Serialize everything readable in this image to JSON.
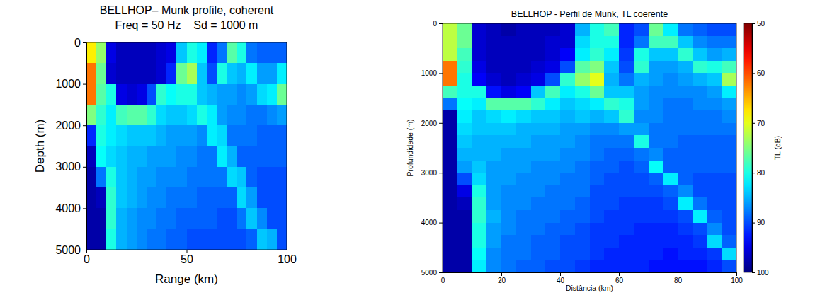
{
  "chart_data": [
    {
      "type": "heatmap",
      "title": "BELLHOP– Munk profile, coherent",
      "subtitle": "Freq = 50 Hz    Sd = 1000 m",
      "x_label": "Range (km)",
      "y_label": "Depth (m)",
      "xlim": [
        0,
        100
      ],
      "ylim": [
        5000,
        0
      ],
      "xticks": [
        0,
        50,
        100
      ],
      "yticks": [
        0,
        1000,
        2000,
        3000,
        4000,
        5000
      ],
      "x": [
        2.5,
        7.5,
        12.5,
        17.5,
        22.5,
        27.5,
        32.5,
        37.5,
        42.5,
        47.5,
        52.5,
        57.5,
        62.5,
        67.5,
        72.5,
        77.5,
        82.5,
        87.5,
        92.5,
        97.5
      ],
      "y": [
        250,
        750,
        1250,
        1750,
        2250,
        2750,
        3250,
        3750,
        4250,
        4750
      ],
      "color_range": [
        50,
        100
      ],
      "values": [
        [
          68,
          74,
          95,
          97,
          97,
          97,
          97,
          96,
          95,
          84,
          80,
          82,
          92,
          88,
          77,
          80,
          88,
          89,
          89,
          89
        ],
        [
          62,
          76,
          96,
          97,
          97,
          97,
          97,
          96,
          92,
          76,
          73,
          84,
          90,
          80,
          84,
          85,
          82,
          86,
          86,
          82
        ],
        [
          62,
          77,
          80,
          95,
          96,
          95,
          90,
          79,
          81,
          80,
          80,
          84,
          85,
          86,
          86,
          87,
          86,
          83,
          82,
          76
        ],
        [
          75,
          79,
          82,
          78,
          77,
          77,
          79,
          83,
          84,
          84,
          83,
          80,
          82,
          86,
          87,
          87,
          88,
          88,
          87,
          86
        ],
        [
          92,
          80,
          82,
          83,
          84,
          84,
          84,
          85,
          86,
          86,
          86,
          87,
          82,
          83,
          88,
          88,
          88,
          89,
          89,
          89
        ],
        [
          97,
          81,
          83,
          84,
          85,
          85,
          86,
          86,
          86,
          87,
          87,
          88,
          88,
          82,
          85,
          89,
          89,
          89,
          89,
          89
        ],
        [
          98,
          88,
          80,
          84,
          85,
          86,
          86,
          87,
          87,
          87,
          88,
          88,
          88,
          88,
          83,
          84,
          89,
          90,
          90,
          90
        ],
        [
          98,
          97,
          79,
          84,
          85,
          86,
          87,
          87,
          88,
          88,
          88,
          89,
          89,
          89,
          89,
          83,
          86,
          90,
          90,
          90
        ],
        [
          98,
          98,
          79,
          85,
          86,
          87,
          87,
          88,
          88,
          89,
          89,
          89,
          89,
          90,
          90,
          88,
          84,
          87,
          90,
          90
        ],
        [
          98,
          98,
          80,
          85,
          86,
          87,
          88,
          88,
          89,
          89,
          90,
          90,
          90,
          90,
          90,
          90,
          89,
          84,
          85,
          90
        ]
      ]
    },
    {
      "type": "heatmap",
      "title": "BELLHOP - Perfil de Munk, TL coerente",
      "x_label": "Distância (km)",
      "y_label": "Profundidade (m)",
      "xlim": [
        0,
        100
      ],
      "ylim": [
        5000,
        0
      ],
      "xticks": [
        0,
        20,
        40,
        60,
        80,
        100
      ],
      "yticks": [
        0,
        1000,
        2000,
        3000,
        4000,
        5000
      ],
      "x": [
        2.5,
        7.5,
        12.5,
        17.5,
        22.5,
        27.5,
        32.5,
        37.5,
        42.5,
        47.5,
        52.5,
        57.5,
        62.5,
        67.5,
        72.5,
        77.5,
        82.5,
        87.5,
        92.5,
        97.5
      ],
      "y": [
        125,
        375,
        625,
        875,
        1125,
        1375,
        1625,
        1875,
        2125,
        2375,
        2625,
        2875,
        3125,
        3375,
        3625,
        3875,
        4125,
        4375,
        4625,
        4875
      ],
      "colorbar": {
        "label": "TL (dB)",
        "range": [
          50,
          100
        ],
        "ticks": [
          50,
          60,
          70,
          80,
          90,
          100
        ]
      },
      "values": [
        [
          72,
          76,
          96,
          97,
          98,
          97,
          97,
          97,
          96,
          85,
          80,
          78,
          92,
          90,
          76,
          82,
          88,
          89,
          90,
          90
        ],
        [
          72,
          76,
          96,
          97,
          97,
          97,
          97,
          96,
          96,
          83,
          80,
          80,
          92,
          88,
          78,
          78,
          84,
          87,
          88,
          88
        ],
        [
          72,
          78,
          96,
          97,
          97,
          97,
          97,
          96,
          94,
          82,
          79,
          82,
          91,
          80,
          84,
          84,
          79,
          84,
          86,
          85
        ],
        [
          62,
          79,
          95,
          97,
          97,
          97,
          96,
          95,
          90,
          77,
          75,
          84,
          90,
          79,
          86,
          86,
          85,
          79,
          80,
          78
        ],
        [
          62,
          80,
          94,
          96,
          97,
          96,
          95,
          90,
          79,
          74,
          70,
          85,
          88,
          85,
          86,
          87,
          86,
          85,
          84,
          73
        ],
        [
          78,
          80,
          80,
          93,
          95,
          94,
          84,
          78,
          82,
          80,
          76,
          84,
          84,
          86,
          87,
          87,
          87,
          87,
          86,
          82
        ],
        [
          88,
          81,
          82,
          77,
          77,
          77,
          79,
          82,
          84,
          83,
          82,
          79,
          80,
          86,
          87,
          88,
          88,
          87,
          87,
          86
        ],
        [
          98,
          82,
          84,
          83,
          82,
          83,
          84,
          84,
          85,
          84,
          85,
          84,
          79,
          87,
          87,
          88,
          88,
          88,
          88,
          87
        ],
        [
          98,
          83,
          84,
          84,
          84,
          85,
          85,
          85,
          86,
          86,
          87,
          87,
          86,
          86,
          88,
          88,
          88,
          88,
          88,
          88
        ],
        [
          98,
          84,
          85,
          85,
          85,
          85,
          86,
          86,
          86,
          87,
          88,
          88,
          88,
          80,
          88,
          88,
          89,
          89,
          89,
          89
        ],
        [
          98,
          85,
          85,
          85,
          86,
          86,
          86,
          86,
          87,
          87,
          88,
          89,
          89,
          88,
          87,
          89,
          89,
          89,
          89,
          89
        ],
        [
          98,
          86,
          84,
          86,
          86,
          86,
          87,
          87,
          87,
          88,
          89,
          89,
          90,
          89,
          81,
          89,
          89,
          89,
          89,
          89
        ],
        [
          98,
          90,
          83,
          86,
          86,
          87,
          87,
          87,
          88,
          88,
          89,
          90,
          90,
          90,
          89,
          82,
          89,
          90,
          90,
          90
        ],
        [
          98,
          95,
          80,
          86,
          87,
          87,
          87,
          88,
          88,
          88,
          90,
          90,
          90,
          90,
          90,
          89,
          87,
          90,
          90,
          90
        ],
        [
          98,
          97,
          79,
          86,
          87,
          87,
          88,
          88,
          88,
          89,
          90,
          90,
          91,
          91,
          91,
          90,
          82,
          88,
          90,
          90
        ],
        [
          98,
          98,
          79,
          85,
          87,
          88,
          88,
          88,
          89,
          89,
          90,
          91,
          91,
          91,
          91,
          91,
          90,
          82,
          89,
          90
        ],
        [
          98,
          98,
          80,
          86,
          87,
          88,
          88,
          89,
          89,
          90,
          91,
          91,
          91,
          92,
          92,
          92,
          91,
          90,
          87,
          90
        ],
        [
          98,
          98,
          80,
          86,
          88,
          88,
          89,
          89,
          90,
          90,
          91,
          91,
          92,
          92,
          92,
          92,
          92,
          91,
          83,
          89
        ],
        [
          98,
          98,
          81,
          87,
          88,
          88,
          89,
          89,
          90,
          90,
          91,
          92,
          92,
          92,
          92,
          93,
          92,
          92,
          91,
          83
        ],
        [
          98,
          98,
          82,
          87,
          88,
          89,
          89,
          90,
          90,
          91,
          92,
          92,
          92,
          92,
          93,
          93,
          93,
          93,
          92,
          90
        ]
      ]
    }
  ]
}
